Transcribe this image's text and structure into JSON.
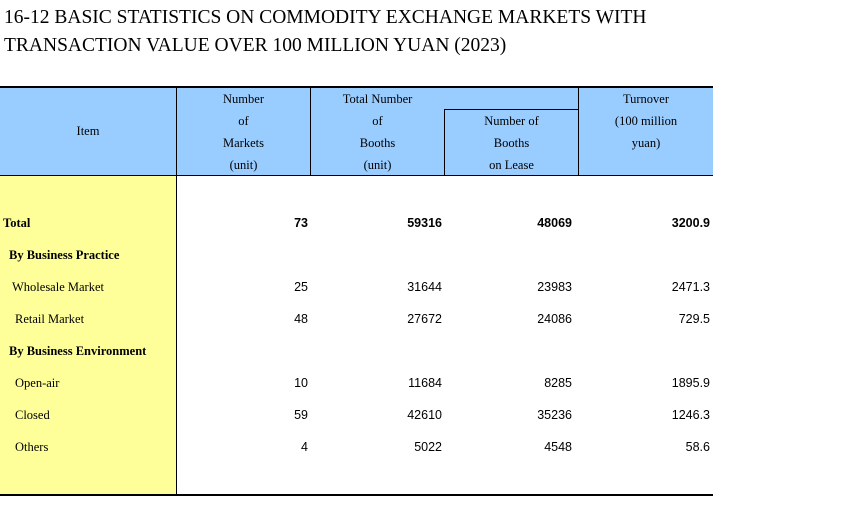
{
  "title": {
    "line1": "16-12  BASIC STATISTICS ON COMMODITY EXCHANGE MARKETS WITH",
    "line2": "TRANSACTION VALUE OVER 100 MILLION YUAN (2023)"
  },
  "header": {
    "item": "Item",
    "markets": [
      "Number",
      "of",
      "Markets",
      "(unit)"
    ],
    "booths": [
      "Total Number",
      "of",
      "Booths",
      "(unit)"
    ],
    "lease": [
      "Number of",
      "Booths",
      "on Lease"
    ],
    "turnover": [
      "Turnover",
      "(100 million",
      "yuan)"
    ]
  },
  "rows": [
    {
      "label": "Total",
      "markets": "73",
      "booths": "59316",
      "lease": "48069",
      "turnover": "3200.9"
    },
    {
      "label": "By Business Practice",
      "markets": "",
      "booths": "",
      "lease": "",
      "turnover": ""
    },
    {
      "label": "Wholesale Market",
      "markets": "25",
      "booths": "31644",
      "lease": "23983",
      "turnover": "2471.3"
    },
    {
      "label": "Retail Market",
      "markets": "48",
      "booths": "27672",
      "lease": "24086",
      "turnover": "729.5"
    },
    {
      "label": "By Business Environment",
      "markets": "",
      "booths": "",
      "lease": "",
      "turnover": ""
    },
    {
      "label": "Open-air",
      "markets": "10",
      "booths": "11684",
      "lease": "8285",
      "turnover": "1895.9"
    },
    {
      "label": "Closed",
      "markets": "59",
      "booths": "42610",
      "lease": "35236",
      "turnover": "1246.3"
    },
    {
      "label": "Others",
      "markets": "4",
      "booths": "5022",
      "lease": "4548",
      "turnover": "58.6"
    }
  ]
}
